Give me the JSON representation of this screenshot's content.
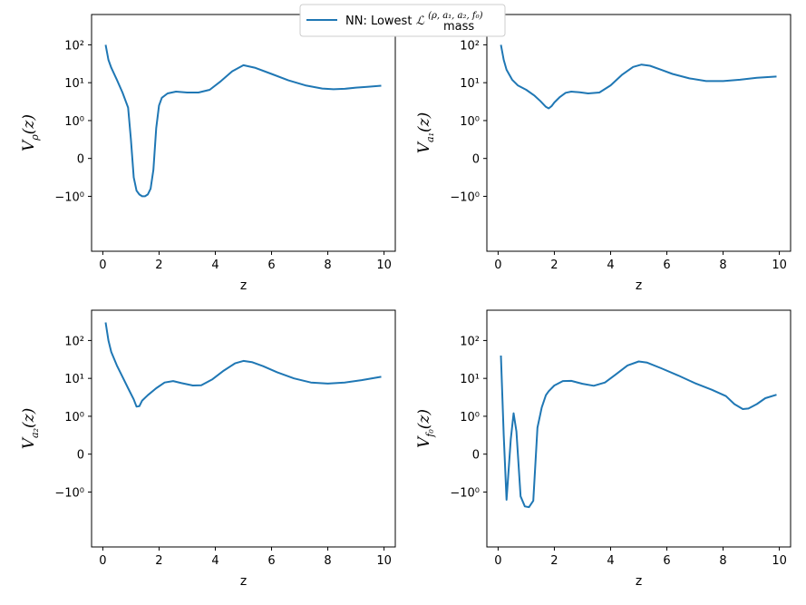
{
  "legend": {
    "label": "NN: Lowest ",
    "math": "ℒ",
    "superscript": "(ρ, a₁, a₂, f₀)",
    "subscript": "mass",
    "color": "#1f77b4"
  },
  "chart_data": [
    {
      "type": "line",
      "xlabel": "z",
      "ylabel": "Vρ(z)",
      "ylabel_base": "V",
      "ylabel_sub": "ρ",
      "yscale": "symlog",
      "xlim": [
        -0.4,
        10.4
      ],
      "x_ticks": [
        0,
        2,
        4,
        6,
        8,
        10
      ],
      "y_ticks": [
        "10²",
        "10¹",
        "10⁰",
        "0",
        "−10⁰"
      ],
      "series": [
        {
          "x": [
            0.1,
            0.2,
            0.3,
            0.5,
            0.7,
            0.9,
            1.0,
            1.1,
            1.2,
            1.3,
            1.4,
            1.5,
            1.6,
            1.7,
            1.8,
            1.9,
            2.0,
            2.1,
            2.3,
            2.6,
            3.0,
            3.4,
            3.8,
            4.2,
            4.6,
            5.0,
            5.4,
            6.0,
            6.6,
            7.2,
            7.8,
            8.2,
            8.6,
            9.0,
            9.4,
            9.9
          ],
          "y": [
            100,
            40,
            25,
            12,
            5.5,
            2.2,
            0.5,
            -0.5,
            -0.85,
            -0.95,
            -1.0,
            -1.0,
            -0.95,
            -0.8,
            -0.3,
            0.8,
            2.5,
            4,
            5.2,
            5.8,
            5.5,
            5.5,
            6.5,
            11,
            20,
            29,
            25,
            17,
            11.5,
            8.5,
            7,
            6.7,
            6.9,
            7.4,
            7.8,
            8.3
          ]
        }
      ]
    },
    {
      "type": "line",
      "xlabel": "z",
      "ylabel": "Va₁(z)",
      "ylabel_base": "V",
      "ylabel_sub": "a₁",
      "yscale": "symlog",
      "xlim": [
        -0.4,
        10.4
      ],
      "x_ticks": [
        0,
        2,
        4,
        6,
        8,
        10
      ],
      "y_ticks": [
        "10²",
        "10¹",
        "10⁰",
        "0",
        "−10⁰"
      ],
      "series": [
        {
          "x": [
            0.1,
            0.2,
            0.3,
            0.5,
            0.7,
            1.0,
            1.3,
            1.5,
            1.7,
            1.8,
            1.9,
            2.0,
            2.2,
            2.4,
            2.6,
            2.9,
            3.2,
            3.6,
            4.0,
            4.4,
            4.8,
            5.1,
            5.4,
            5.8,
            6.2,
            6.8,
            7.4,
            8.0,
            8.6,
            9.2,
            9.9
          ],
          "y": [
            100,
            40,
            22,
            12,
            8.5,
            6.5,
            4.5,
            3.3,
            2.3,
            2.1,
            2.4,
            3.0,
            4.2,
            5.4,
            5.8,
            5.6,
            5.2,
            5.5,
            8.5,
            16,
            26,
            30,
            28,
            22,
            17,
            13,
            11,
            11,
            12,
            13.5,
            14.5
          ]
        }
      ]
    },
    {
      "type": "line",
      "xlabel": "z",
      "ylabel": "Va₂(z)",
      "ylabel_base": "V",
      "ylabel_sub": "a₂",
      "yscale": "symlog",
      "xlim": [
        -0.4,
        10.4
      ],
      "x_ticks": [
        0,
        2,
        4,
        6,
        8,
        10
      ],
      "y_ticks": [
        "10²",
        "10¹",
        "10⁰",
        "0",
        "−10⁰"
      ],
      "series": [
        {
          "x": [
            0.1,
            0.2,
            0.3,
            0.5,
            0.7,
            0.9,
            1.1,
            1.2,
            1.3,
            1.4,
            1.6,
            1.9,
            2.2,
            2.5,
            2.8,
            3.2,
            3.5,
            3.9,
            4.3,
            4.7,
            5.0,
            5.3,
            5.7,
            6.2,
            6.8,
            7.4,
            8.0,
            8.6,
            9.2,
            9.9
          ],
          "y": [
            300,
            100,
            50,
            22,
            11,
            5.5,
            2.8,
            1.8,
            1.85,
            2.6,
            3.6,
            5.5,
            7.8,
            8.5,
            7.5,
            6.5,
            6.6,
            9.5,
            16,
            25,
            29,
            27,
            21,
            14.5,
            10,
            7.8,
            7.3,
            7.8,
            9.0,
            11
          ]
        }
      ]
    },
    {
      "type": "line",
      "xlabel": "z",
      "ylabel": "Vf₀(z)",
      "ylabel_base": "V",
      "ylabel_sub": "f₀",
      "yscale": "symlog",
      "xlim": [
        -0.4,
        10.4
      ],
      "x_ticks": [
        0,
        2,
        4,
        6,
        8,
        10
      ],
      "y_ticks": [
        "10²",
        "10¹",
        "10⁰",
        "0",
        "−10⁰"
      ],
      "series": [
        {
          "x": [
            0.1,
            0.2,
            0.3,
            0.45,
            0.55,
            0.65,
            0.8,
            0.95,
            1.1,
            1.25,
            1.4,
            1.55,
            1.7,
            1.8,
            2.0,
            2.3,
            2.6,
            3.0,
            3.4,
            3.8,
            4.2,
            4.6,
            5.0,
            5.3,
            5.8,
            6.4,
            7.0,
            7.6,
            8.1,
            8.4,
            8.7,
            8.9,
            9.2,
            9.5,
            9.9
          ],
          "y": [
            40,
            0.5,
            -1.6,
            0.4,
            1.2,
            0.6,
            -1.3,
            -2.4,
            -2.5,
            -1.7,
            0.7,
            1.7,
            3.6,
            4.6,
            6.5,
            8.5,
            8.6,
            7.2,
            6.4,
            7.8,
            13,
            22,
            28,
            26,
            18.5,
            12,
            7.5,
            5,
            3.4,
            2.1,
            1.55,
            1.6,
            2.1,
            3.0,
            3.7
          ]
        }
      ]
    }
  ]
}
